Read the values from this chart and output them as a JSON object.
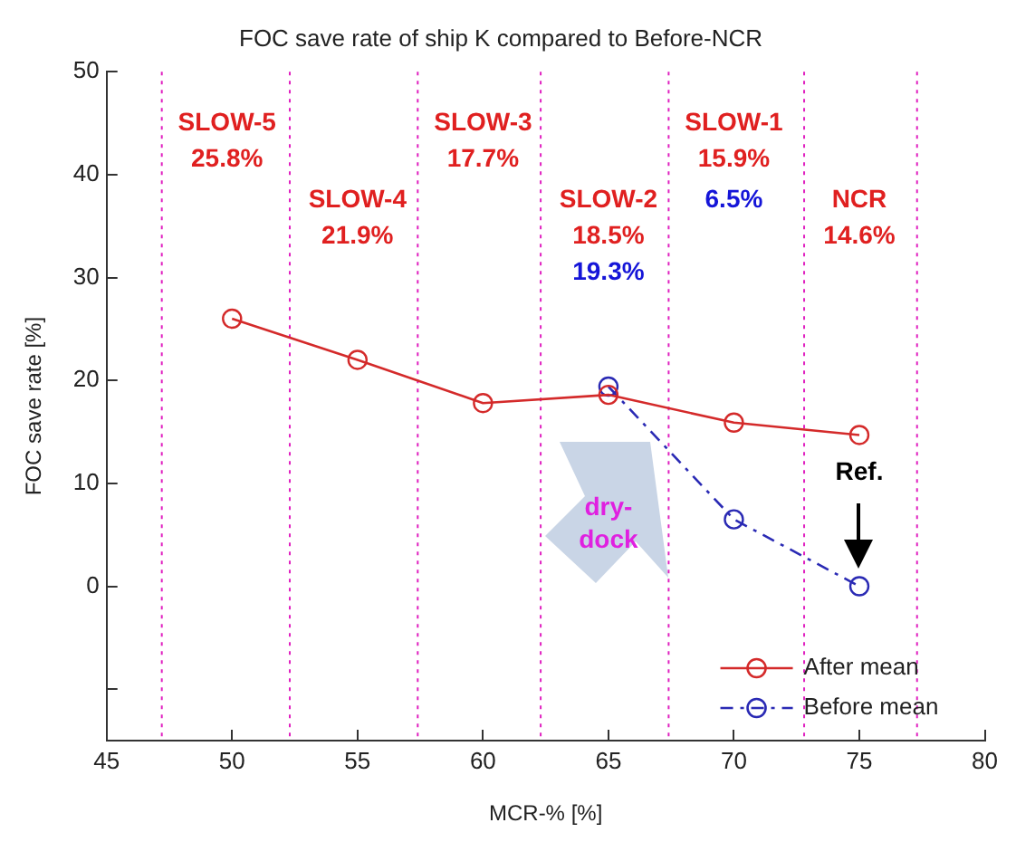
{
  "chart_data": {
    "type": "line",
    "title": "FOC save rate of ship K compared to Before-NCR",
    "xlabel": "MCR-% [%]",
    "ylabel": "FOC save rate [%]",
    "xlim": [
      45,
      80
    ],
    "xticks": [
      45,
      50,
      55,
      60,
      65,
      70,
      75,
      80
    ],
    "ylim": [
      -15,
      50
    ],
    "yticks": [
      {
        "value": -10,
        "label": null
      },
      0,
      10,
      20,
      30,
      40,
      50
    ],
    "grid": false,
    "legend": "bottom right",
    "marker": "circle",
    "series": [
      {
        "name": "After mean",
        "color": "#d42a2a",
        "line_style": "solid",
        "x": [
          50,
          55,
          60,
          65,
          70,
          75
        ],
        "values": [
          26.0,
          22.0,
          17.8,
          18.6,
          15.9,
          14.7
        ]
      },
      {
        "name": "Before mean",
        "color": "#2a2ab4",
        "line_style": "dashed",
        "x": [
          65,
          70,
          75
        ],
        "values": [
          19.4,
          6.5,
          0
        ]
      }
    ],
    "ref_lines": [
      {
        "axis": "x",
        "value": 47.2,
        "color": "#e020c0",
        "line_style": "dotted"
      },
      {
        "axis": "x",
        "value": 52.3,
        "color": "#e020c0",
        "line_style": "dotted"
      },
      {
        "axis": "x",
        "value": 57.4,
        "color": "#e020c0",
        "line_style": "dotted"
      },
      {
        "axis": "x",
        "value": 62.3,
        "color": "#e020c0",
        "line_style": "dotted"
      },
      {
        "axis": "x",
        "value": 67.4,
        "color": "#e020c0",
        "line_style": "dotted"
      },
      {
        "axis": "x",
        "value": 72.8,
        "color": "#e020c0",
        "line_style": "dotted"
      },
      {
        "axis": "x",
        "value": 77.3,
        "color": "#e020c0",
        "line_style": "dotted"
      }
    ],
    "annotations": [
      "SLOW-5",
      "25.8%",
      "SLOW-4",
      "21.9%",
      "SLOW-3",
      "17.7%",
      "SLOW-2",
      "18.5%",
      "19.3%",
      "SLOW-1",
      "15.9%",
      "6.5%",
      "NCR",
      "14.6%",
      "dry-dock",
      "Ref."
    ]
  }
}
